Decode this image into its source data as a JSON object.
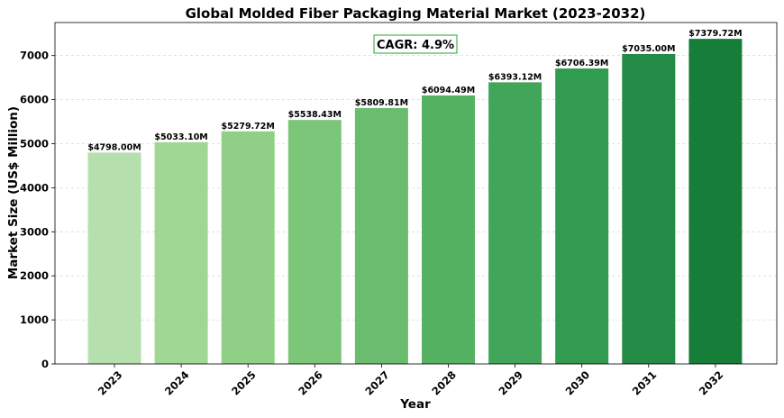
{
  "chart_data": {
    "type": "bar",
    "title": "Global Molded Fiber Packaging Material Market (2023-2032)",
    "xlabel": "Year",
    "ylabel": "Market Size (US$ Million)",
    "categories": [
      "2023",
      "2024",
      "2025",
      "2026",
      "2027",
      "2028",
      "2029",
      "2030",
      "2031",
      "2032"
    ],
    "values": [
      4798.0,
      5033.1,
      5279.72,
      5538.43,
      5809.81,
      6094.49,
      6393.12,
      6706.39,
      7035.0,
      7379.72
    ],
    "value_labels": [
      "$4798.00M",
      "$5033.10M",
      "$5279.72M",
      "$5538.43M",
      "$5809.81M",
      "$6094.49M",
      "$6393.12M",
      "$6706.39M",
      "$7035.00M",
      "$7379.72M"
    ],
    "bar_colors": [
      "#b5e0ad",
      "#a0d794",
      "#8fd086",
      "#7cc67a",
      "#6abd6e",
      "#55b263",
      "#42a65a",
      "#319b50",
      "#238b45",
      "#177e3a"
    ],
    "ylim": [
      0,
      7750
    ],
    "yticks": [
      0,
      1000,
      2000,
      3000,
      4000,
      5000,
      6000,
      7000
    ],
    "grid": true,
    "annotation": "CAGR: 4.9%",
    "annotation_border_color": "#2ca02c"
  }
}
